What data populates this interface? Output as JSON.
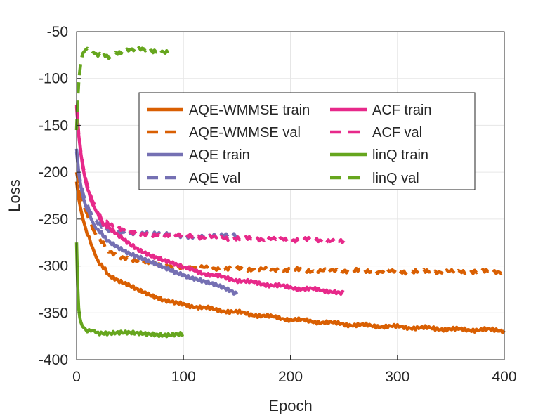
{
  "chart_data": {
    "type": "line",
    "title": "",
    "xlabel": "Epoch",
    "ylabel": "Loss",
    "xlim": [
      0,
      400
    ],
    "ylim": [
      -400,
      -50
    ],
    "xticks": [
      "0",
      "100",
      "200",
      "300",
      "400"
    ],
    "yticks": [
      "-50",
      "-100",
      "-150",
      "-200",
      "-250",
      "-300",
      "-350",
      "-400"
    ],
    "grid": true,
    "legend_location": "center",
    "series": [
      {
        "name": "AQE-WMMSE train",
        "color": "#d95f02",
        "style": "solid",
        "x": [
          0,
          2,
          4,
          6,
          8,
          10,
          15,
          20,
          25,
          30,
          40,
          50,
          60,
          70,
          80,
          90,
          100,
          120,
          140,
          160,
          180,
          200,
          220,
          240,
          260,
          280,
          300,
          320,
          340,
          360,
          380,
          400
        ],
        "y": [
          -210,
          -228,
          -240,
          -250,
          -258,
          -264,
          -282,
          -294,
          -302,
          -310,
          -317,
          -322,
          -327,
          -331,
          -335,
          -338,
          -341,
          -345,
          -348,
          -351,
          -354,
          -357,
          -359,
          -361,
          -363,
          -364,
          -365,
          -366,
          -367,
          -368,
          -368,
          -369
        ]
      },
      {
        "name": "AQE-WMMSE val",
        "color": "#d95f02",
        "style": "dashed",
        "x": [
          0,
          2,
          4,
          6,
          8,
          10,
          15,
          20,
          25,
          30,
          40,
          50,
          60,
          70,
          80,
          90,
          100,
          120,
          140,
          160,
          180,
          200,
          220,
          240,
          260,
          280,
          300,
          320,
          340,
          360,
          380,
          400
        ],
        "y": [
          -200,
          -212,
          -224,
          -233,
          -240,
          -246,
          -260,
          -270,
          -277,
          -283,
          -290,
          -294,
          -296,
          -297,
          -299,
          -300,
          -301,
          -302,
          -303,
          -303,
          -304,
          -304,
          -305,
          -305,
          -305,
          -306,
          -306,
          -306,
          -306,
          -306,
          -306,
          -306
        ]
      },
      {
        "name": "AQE train",
        "color": "#7570b3",
        "style": "solid",
        "x": [
          0,
          2,
          4,
          6,
          8,
          10,
          15,
          20,
          25,
          30,
          40,
          50,
          60,
          70,
          80,
          90,
          100,
          110,
          120,
          130,
          140,
          150
        ],
        "y": [
          -175,
          -200,
          -215,
          -226,
          -234,
          -240,
          -253,
          -262,
          -268,
          -273,
          -280,
          -287,
          -292,
          -297,
          -301,
          -305,
          -309,
          -313,
          -317,
          -321,
          -325,
          -330
        ]
      },
      {
        "name": "AQE val",
        "color": "#7570b3",
        "style": "dashed",
        "x": [
          0,
          2,
          4,
          6,
          8,
          10,
          15,
          20,
          25,
          30,
          40,
          50,
          60,
          70,
          80,
          90,
          100,
          110,
          120,
          130,
          140,
          150
        ],
        "y": [
          -178,
          -200,
          -212,
          -222,
          -230,
          -236,
          -247,
          -255,
          -259,
          -262,
          -263,
          -264,
          -265,
          -266,
          -267,
          -267,
          -268,
          -268,
          -268,
          -268,
          -268,
          -268
        ]
      },
      {
        "name": "ACF train",
        "color": "#e7298a",
        "style": "solid",
        "x": [
          0,
          2,
          4,
          6,
          8,
          10,
          15,
          20,
          25,
          30,
          40,
          50,
          60,
          70,
          80,
          90,
          100,
          120,
          140,
          160,
          180,
          200,
          220,
          240,
          250
        ],
        "y": [
          -130,
          -160,
          -180,
          -195,
          -207,
          -216,
          -234,
          -246,
          -254,
          -260,
          -268,
          -276,
          -283,
          -289,
          -294,
          -298,
          -302,
          -308,
          -313,
          -317,
          -320,
          -323,
          -325,
          -327,
          -328
        ]
      },
      {
        "name": "ACF val",
        "color": "#e7298a",
        "style": "dashed",
        "x": [
          0,
          2,
          4,
          6,
          8,
          10,
          15,
          20,
          25,
          30,
          40,
          50,
          60,
          70,
          80,
          90,
          100,
          120,
          140,
          160,
          180,
          200,
          220,
          240,
          250
        ],
        "y": [
          -128,
          -158,
          -178,
          -193,
          -205,
          -214,
          -231,
          -243,
          -251,
          -256,
          -261,
          -264,
          -265,
          -266,
          -267,
          -268,
          -268,
          -269,
          -270,
          -271,
          -271,
          -272,
          -272,
          -273,
          -273
        ]
      },
      {
        "name": "linQ train",
        "color": "#66a61e",
        "style": "solid",
        "x": [
          0,
          1,
          2,
          3,
          4,
          5,
          6,
          8,
          10,
          15,
          20,
          30,
          40,
          50,
          60,
          70,
          80,
          90,
          100
        ],
        "y": [
          -275,
          -320,
          -345,
          -355,
          -360,
          -363,
          -365,
          -367,
          -368,
          -370,
          -371,
          -372,
          -372,
          -372,
          -372,
          -372,
          -373,
          -373,
          -373
        ]
      },
      {
        "name": "linQ val",
        "color": "#66a61e",
        "style": "dashed",
        "x": [
          0,
          1,
          2,
          3,
          4,
          5,
          6,
          8,
          10,
          12,
          15,
          20,
          25,
          30,
          35,
          40,
          50,
          55,
          60,
          70,
          80,
          90
        ],
        "y": [
          -155,
          -125,
          -105,
          -92,
          -83,
          -77,
          -73,
          -70,
          -69,
          -70,
          -72,
          -74,
          -75,
          -77,
          -75,
          -73,
          -70,
          -68,
          -69,
          -71,
          -71,
          -71
        ]
      }
    ]
  }
}
